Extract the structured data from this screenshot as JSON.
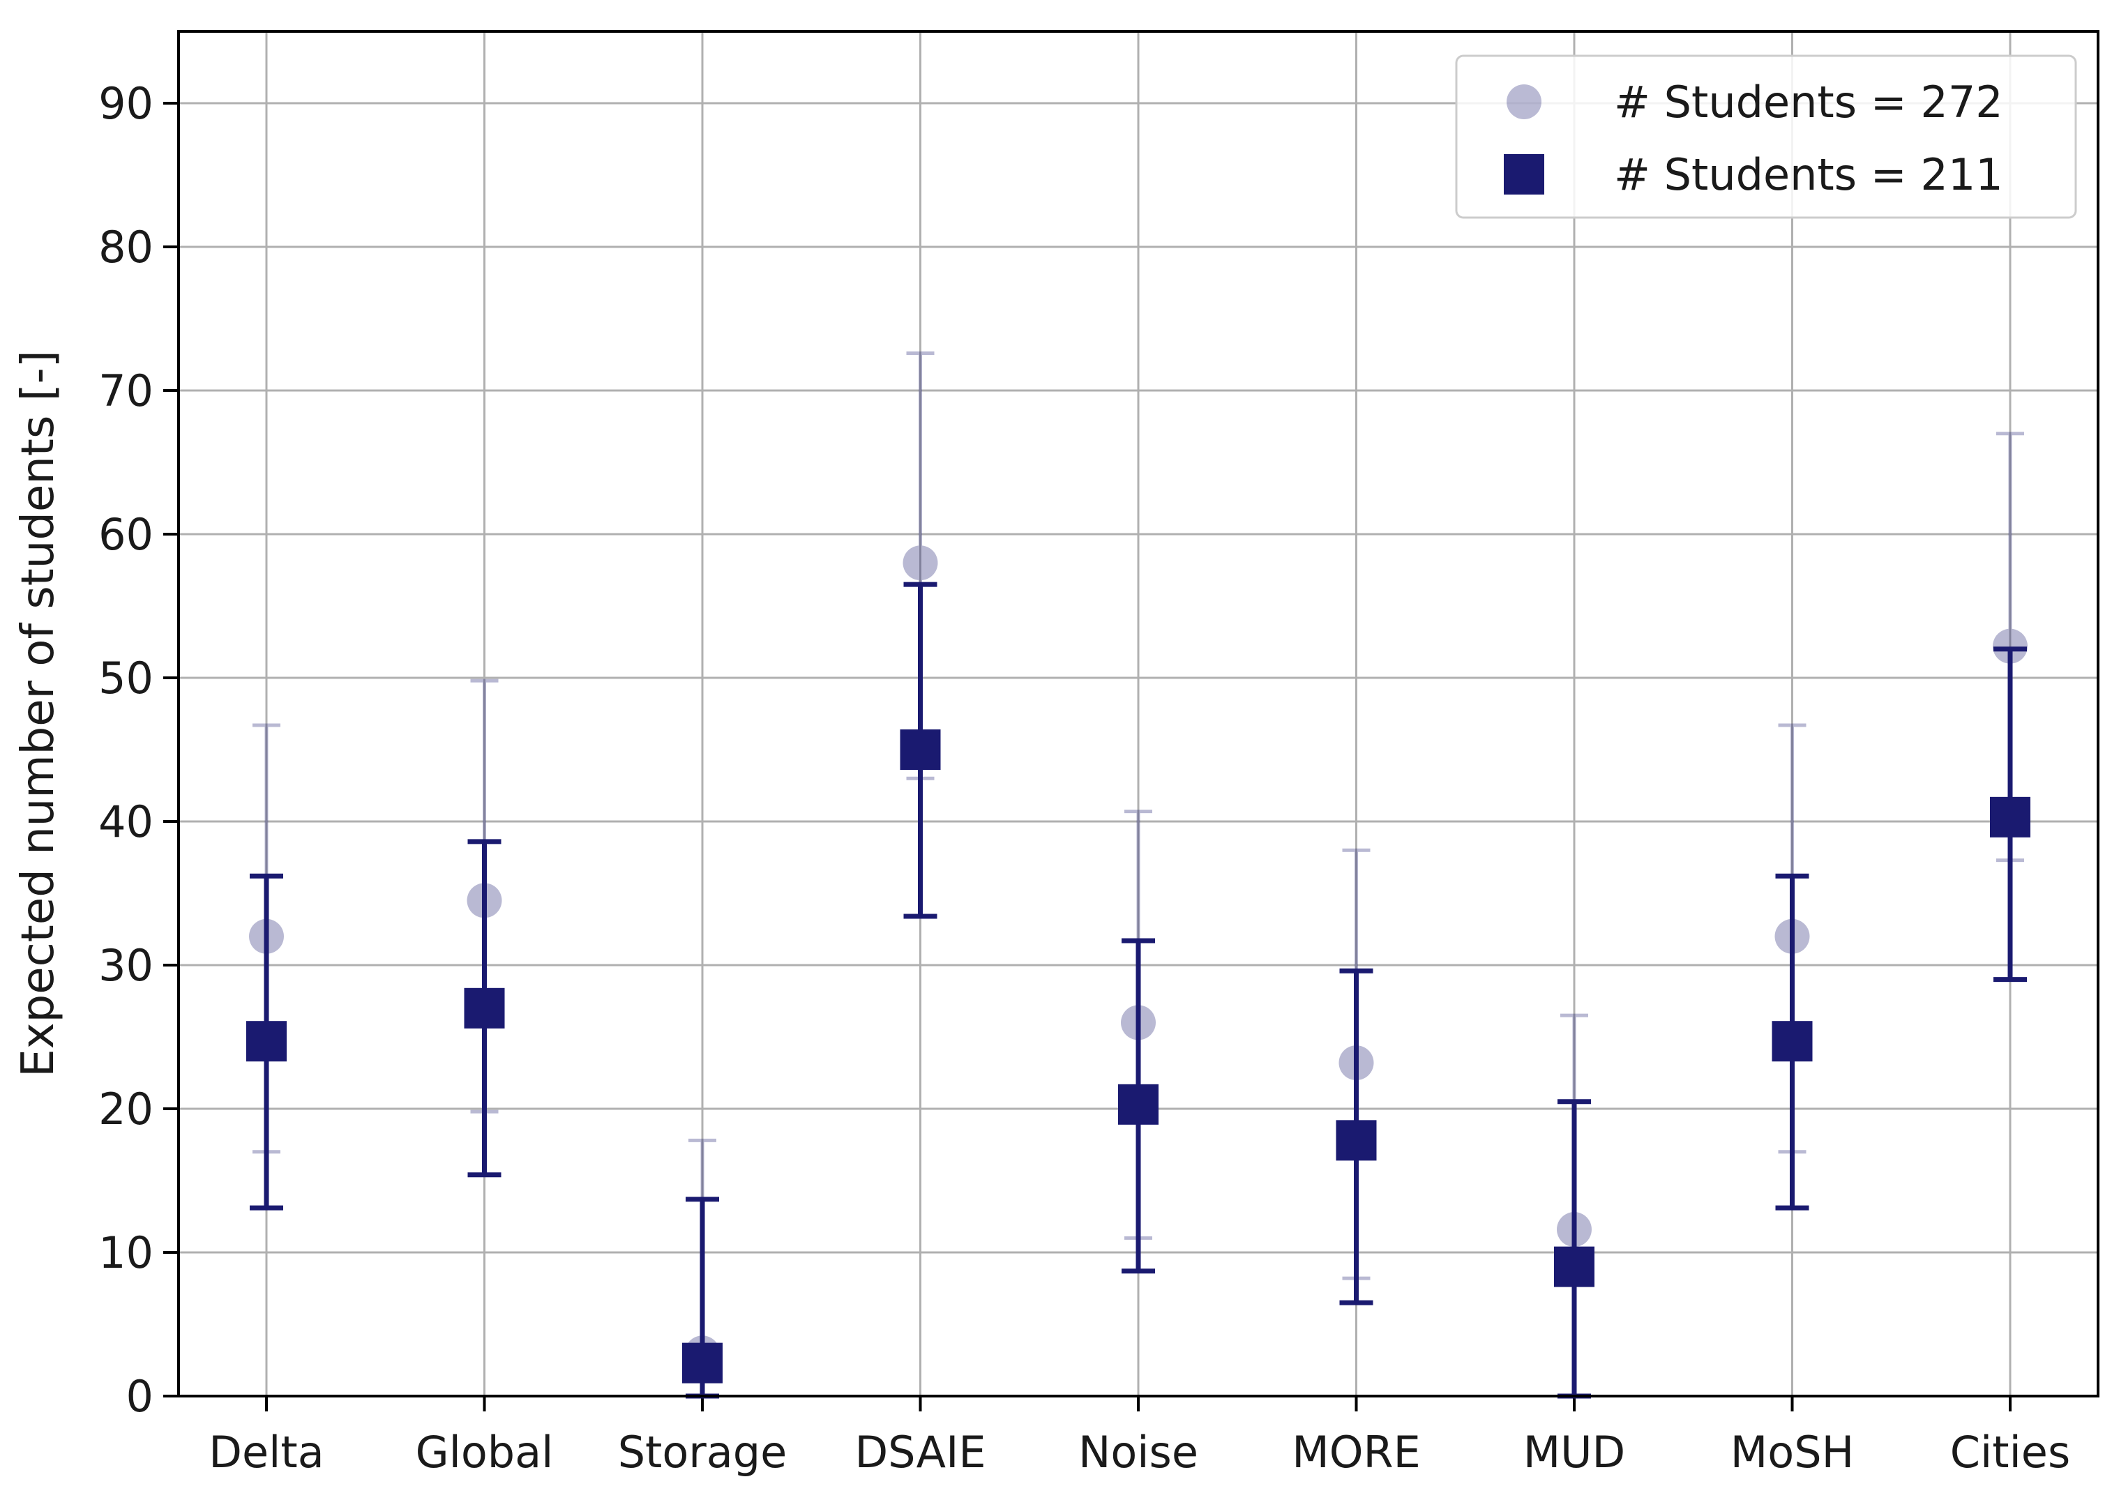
{
  "chart_data": {
    "type": "scatter",
    "title": "",
    "xlabel": "",
    "ylabel": "Expected number of students [-]",
    "categories": [
      "Delta",
      "Global",
      "Storage",
      "DSAIE",
      "Noise",
      "MORE",
      "MUD",
      "MoSH",
      "Cities"
    ],
    "yticks": [
      0,
      10,
      20,
      30,
      40,
      50,
      60,
      70,
      80,
      90
    ],
    "ylim": [
      0,
      95
    ],
    "grid": true,
    "legend_position": "top-right",
    "series": [
      {
        "name": "# Students = 272",
        "marker": "circle",
        "color": "#1a1a70",
        "opacity": 0.3,
        "values": [
          32,
          34.5,
          3,
          58,
          26,
          23.2,
          11.6,
          32,
          52.2
        ],
        "err_low": [
          17,
          19.8,
          0,
          43,
          11,
          8.2,
          0,
          17,
          37.3
        ],
        "err_high": [
          46.7,
          49.8,
          17.8,
          72.6,
          40.7,
          38,
          26.5,
          46.7,
          67
        ]
      },
      {
        "name": "# Students = 211",
        "marker": "square",
        "color": "#1a1a70",
        "opacity": 1,
        "values": [
          24.7,
          27,
          2.3,
          45,
          20.3,
          17.8,
          9,
          24.7,
          40.3
        ],
        "err_low": [
          13.1,
          15.4,
          0,
          33.4,
          8.7,
          6.5,
          0,
          13.1,
          29
        ],
        "err_high": [
          36.2,
          38.6,
          13.7,
          56.5,
          31.7,
          29.6,
          20.5,
          36.2,
          52
        ]
      }
    ]
  }
}
